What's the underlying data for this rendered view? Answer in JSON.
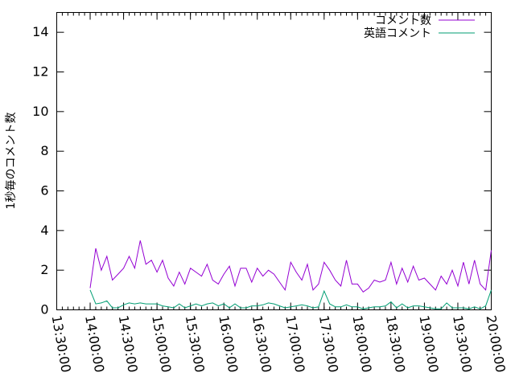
{
  "chart_data": {
    "type": "line",
    "title": "",
    "xlabel": "",
    "ylabel": "1秒毎のコメント数",
    "xlim": [
      "13:30:00",
      "20:00:00"
    ],
    "ylim": [
      0,
      15
    ],
    "x_tick_labels": [
      "13:30:00",
      "14:00:00",
      "14:30:00",
      "15:00:00",
      "15:30:00",
      "16:00:00",
      "16:30:00",
      "17:00:00",
      "17:30:00",
      "18:00:00",
      "18:30:00",
      "19:00:00",
      "19:30:00",
      "20:00:00"
    ],
    "y_tick_labels": [
      "0",
      "2",
      "4",
      "6",
      "8",
      "10",
      "12",
      "14"
    ],
    "grid": false,
    "legend": "top-right",
    "x": [
      "14:00",
      "14:05",
      "14:10",
      "14:15",
      "14:20",
      "14:25",
      "14:30",
      "14:35",
      "14:40",
      "14:45",
      "14:50",
      "14:55",
      "15:00",
      "15:05",
      "15:10",
      "15:15",
      "15:20",
      "15:25",
      "15:30",
      "15:35",
      "15:40",
      "15:45",
      "15:50",
      "15:55",
      "16:00",
      "16:05",
      "16:10",
      "16:15",
      "16:20",
      "16:25",
      "16:30",
      "16:35",
      "16:40",
      "16:45",
      "16:50",
      "16:55",
      "17:00",
      "17:05",
      "17:10",
      "17:15",
      "17:20",
      "17:25",
      "17:30",
      "17:35",
      "17:40",
      "17:45",
      "17:50",
      "17:55",
      "18:00",
      "18:05",
      "18:10",
      "18:15",
      "18:20",
      "18:25",
      "18:30",
      "18:35",
      "18:40",
      "18:45",
      "18:50",
      "18:55",
      "19:00",
      "19:05",
      "19:10",
      "19:15",
      "19:20",
      "19:25",
      "19:30",
      "19:35",
      "19:40",
      "19:45",
      "19:50",
      "19:55",
      "20:00"
    ],
    "series": [
      {
        "name": "コメント数",
        "color": "#9400d3",
        "values": [
          1.1,
          3.1,
          2.0,
          2.7,
          1.5,
          1.8,
          2.1,
          2.7,
          2.1,
          3.5,
          2.3,
          2.5,
          1.9,
          2.5,
          1.6,
          1.2,
          1.9,
          1.3,
          2.1,
          1.9,
          1.7,
          2.3,
          1.5,
          1.3,
          1.8,
          2.2,
          1.2,
          2.1,
          2.1,
          1.4,
          2.1,
          1.7,
          2.0,
          1.8,
          1.4,
          1.0,
          2.4,
          1.9,
          1.5,
          2.3,
          1.0,
          1.3,
          2.4,
          2.0,
          1.5,
          1.2,
          2.5,
          1.3,
          1.3,
          0.9,
          1.1,
          1.5,
          1.4,
          1.5,
          2.4,
          1.3,
          2.1,
          1.4,
          2.2,
          1.5,
          1.6,
          1.3,
          1.0,
          1.7,
          1.3,
          2.0,
          1.2,
          2.4,
          1.3,
          2.5,
          1.3,
          1.0,
          3.0
        ]
      },
      {
        "name": "英語コメント",
        "color": "#009e73",
        "values": [
          1.0,
          0.3,
          0.35,
          0.45,
          0.1,
          0.1,
          0.25,
          0.35,
          0.3,
          0.35,
          0.3,
          0.3,
          0.3,
          0.2,
          0.15,
          0.1,
          0.3,
          0.1,
          0.2,
          0.3,
          0.2,
          0.3,
          0.35,
          0.2,
          0.3,
          0.1,
          0.3,
          0.1,
          0.1,
          0.2,
          0.2,
          0.25,
          0.35,
          0.3,
          0.2,
          0.1,
          0.15,
          0.2,
          0.25,
          0.2,
          0.1,
          0.15,
          0.95,
          0.3,
          0.15,
          0.15,
          0.25,
          0.15,
          0.15,
          0.05,
          0.1,
          0.15,
          0.15,
          0.2,
          0.4,
          0.1,
          0.3,
          0.1,
          0.2,
          0.2,
          0.15,
          0.1,
          0.05,
          0.05,
          0.35,
          0.1,
          0.1,
          0.1,
          0.05,
          0.15,
          0.05,
          0.2,
          1.0
        ]
      }
    ]
  }
}
